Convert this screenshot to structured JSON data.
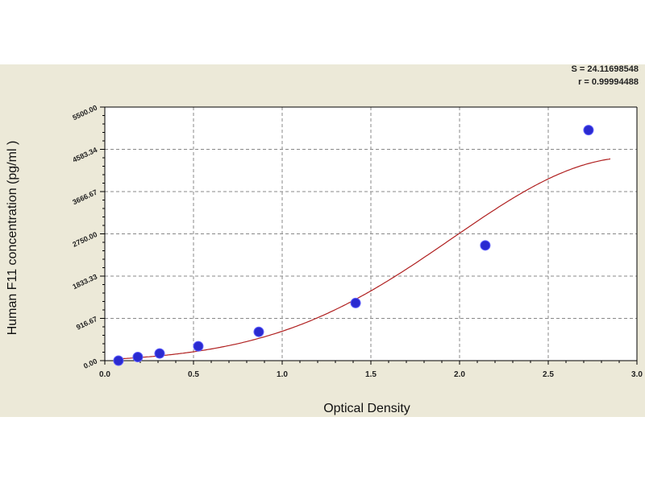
{
  "chart_data": {
    "type": "scatter",
    "xlabel": "Optical Density",
    "ylabel": "Human F11 concentration (pg/ml )",
    "xlim": [
      0,
      3.0
    ],
    "ylim": [
      0,
      5500
    ],
    "x_ticks": [
      "0.0",
      "0.5",
      "1.0",
      "1.5",
      "2.0",
      "2.5",
      "3.0"
    ],
    "y_ticks": [
      "0.00",
      "916.67",
      "1833.33",
      "2750.00",
      "3666.67",
      "4583.34",
      "5500.00"
    ],
    "grid": true,
    "points": {
      "x": [
        0.077,
        0.186,
        0.309,
        0.527,
        0.868,
        1.414,
        2.145,
        2.727
      ],
      "y": [
        0,
        78,
        156,
        312.5,
        625,
        1250,
        2500,
        5000
      ]
    },
    "fit_curve": true,
    "annotations": [
      "S = 24.11698548",
      "r = 0.99994488"
    ],
    "colors": {
      "points": "#2a2ad0",
      "curve": "#b02020",
      "background": "#ece9d8",
      "plot": "#ffffff"
    }
  }
}
